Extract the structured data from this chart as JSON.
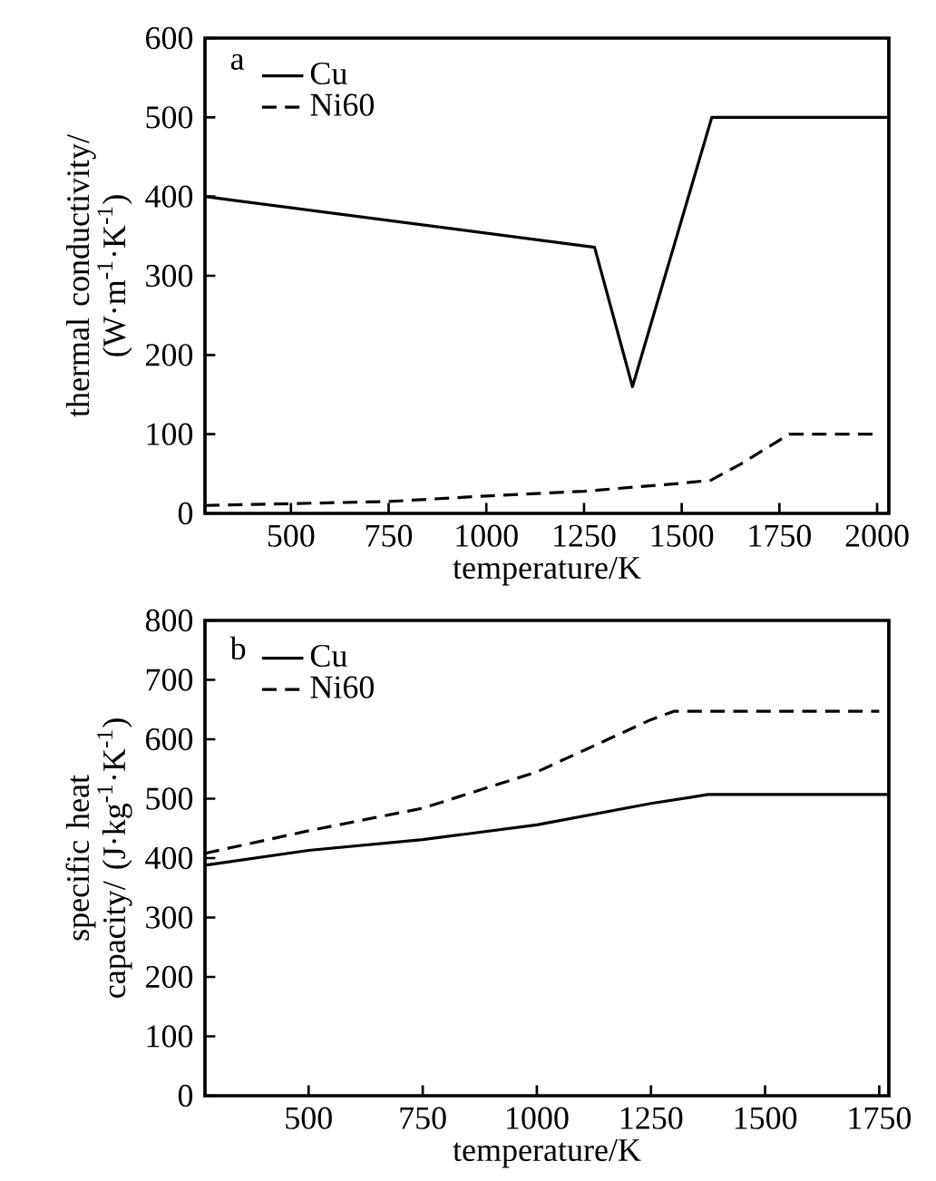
{
  "chart_data": [
    {
      "type": "line",
      "xlabel": "temperature/K",
      "ylabel": "thermal conductivity/ (W·m$^{-1}$·K$^{-1}$)",
      "annotations": [
        "a"
      ],
      "xlim": [
        280,
        2030
      ],
      "ylim": [
        0,
        600
      ],
      "xticks": [
        500,
        750,
        1000,
        1250,
        1500,
        1750,
        2000
      ],
      "yticks": [
        0,
        100,
        200,
        300,
        400,
        500,
        600
      ],
      "legend": "top left",
      "grid": false,
      "series": [
        {
          "name": "Cu",
          "color": "#000000",
          "line_style": "solid",
          "x": [
            280,
            1277,
            1374,
            1577,
            2030
          ],
          "values": [
            400,
            336,
            160,
            500,
            500
          ]
        },
        {
          "name": "Ni60",
          "color": "#000000",
          "line_style": "dashed",
          "x": [
            280,
            750,
            1000,
            1250,
            1375,
            1500,
            1575,
            1650,
            1775,
            1990
          ],
          "values": [
            10,
            15,
            22,
            28,
            33,
            38,
            42,
            62,
            100,
            100
          ]
        }
      ]
    },
    {
      "type": "line",
      "xlabel": "temperature/K",
      "ylabel": "specific heat capacity/ (J·kg$^{-1}$·K$^{-1}$)",
      "annotations": [
        "b"
      ],
      "xlim": [
        273,
        1771
      ],
      "ylim": [
        0,
        800
      ],
      "xticks": [
        500,
        750,
        1000,
        1250,
        1500,
        1750
      ],
      "yticks": [
        0,
        100,
        200,
        300,
        400,
        500,
        600,
        700,
        800
      ],
      "legend": "top left",
      "grid": false,
      "series": [
        {
          "name": "Cu",
          "color": "#000000",
          "line_style": "solid",
          "x": [
            273,
            500,
            750,
            1000,
            1250,
            1375,
            1771
          ],
          "values": [
            388,
            413,
            431,
            456,
            492,
            507,
            507
          ]
        },
        {
          "name": "Ni60",
          "color": "#000000",
          "line_style": "dashed",
          "x": [
            273,
            500,
            750,
            1000,
            1250,
            1300,
            1750
          ],
          "values": [
            408,
            446,
            484,
            545,
            633,
            647,
            647
          ]
        }
      ]
    }
  ]
}
